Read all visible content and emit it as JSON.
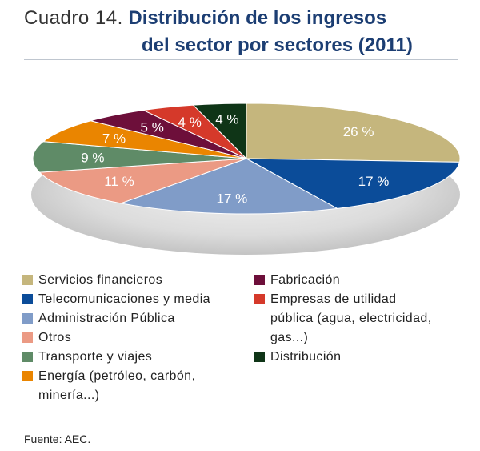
{
  "title": {
    "prefix": "Cuadro 14.",
    "line1": "Distribución de los ingresos",
    "line2": "del sector por sectores (2011)"
  },
  "chart_data": {
    "type": "pie",
    "title": "Distribución de los ingresos del sector por sectores (2011)",
    "unit": "%",
    "slices": [
      {
        "name": "Servicios financieros",
        "value": 26,
        "label": "26 %",
        "color": "#c5b67d"
      },
      {
        "name": "Telecomunicaciones y media",
        "value": 17,
        "label": "17 %",
        "color": "#0b4c99"
      },
      {
        "name": "Administración Pública",
        "value": 17,
        "label": "17 %",
        "color": "#809cc8"
      },
      {
        "name": "Otros",
        "value": 11,
        "label": "11 %",
        "color": "#eb9a84"
      },
      {
        "name": "Transporte y viajes",
        "value": 9,
        "label": "9 %",
        "color": "#5f8b67"
      },
      {
        "name": "Energía (petróleo, carbón, minería...)",
        "value": 7,
        "label": "7 %",
        "color": "#ea8500"
      },
      {
        "name": "Fabricación",
        "value": 5,
        "label": "5 %",
        "color": "#6d0f3a"
      },
      {
        "name": "Empresas de utilidad pública (agua, electricidad, gas...)",
        "value": 4,
        "label": "4 %",
        "color": "#d5392a"
      },
      {
        "name": "Distribución",
        "value": 4,
        "label": "4 %",
        "color": "#0f3517"
      }
    ]
  },
  "legend": {
    "left": [
      {
        "lines": [
          "Servicios financieros"
        ],
        "color": "#c5b67d"
      },
      {
        "lines": [
          "Telecomunicaciones y media"
        ],
        "color": "#0b4c99"
      },
      {
        "lines": [
          "Administración Pública"
        ],
        "color": "#809cc8"
      },
      {
        "lines": [
          "Otros"
        ],
        "color": "#eb9a84"
      },
      {
        "lines": [
          "Transporte y viajes"
        ],
        "color": "#5f8b67"
      },
      {
        "lines": [
          "Energía (petróleo, carbón,",
          "minería...)"
        ],
        "color": "#ea8500"
      }
    ],
    "right": [
      {
        "lines": [
          "Fabricación"
        ],
        "color": "#6d0f3a"
      },
      {
        "lines": [
          "Empresas de utilidad",
          "pública (agua, electricidad,",
          "gas...)"
        ],
        "color": "#d5392a"
      },
      {
        "lines": [
          "Distribución"
        ],
        "color": "#0f3517"
      }
    ]
  },
  "source": "Fuente: AEC."
}
